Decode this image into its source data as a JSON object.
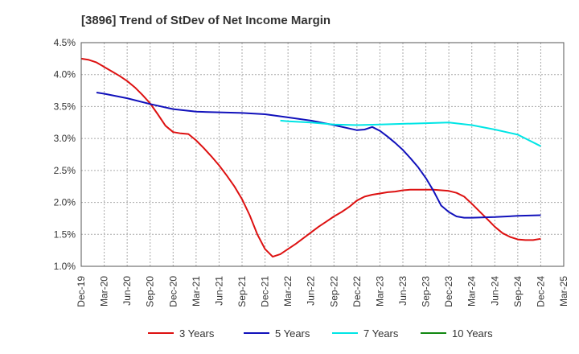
{
  "chart_data": {
    "type": "line",
    "title": "[3896]  Trend of StDev of Net Income Margin",
    "xlabel": "",
    "ylabel": "",
    "ylim": [
      1.0,
      4.5
    ],
    "y_ticks": [
      "1.0%",
      "1.5%",
      "2.0%",
      "2.5%",
      "3.0%",
      "3.5%",
      "4.0%",
      "4.5%"
    ],
    "y_tick_values": [
      1.0,
      1.5,
      2.0,
      2.5,
      3.0,
      3.5,
      4.0,
      4.5
    ],
    "x_ticks": [
      "Dec-19",
      "Mar-20",
      "Jun-20",
      "Sep-20",
      "Dec-20",
      "Mar-21",
      "Jun-21",
      "Sep-21",
      "Dec-21",
      "Mar-22",
      "Jun-22",
      "Sep-22",
      "Dec-22",
      "Mar-23",
      "Jun-23",
      "Sep-23",
      "Dec-23",
      "Mar-24",
      "Jun-24",
      "Sep-24",
      "Dec-24",
      "Mar-25"
    ],
    "grid": true,
    "legend_position": "bottom",
    "series": [
      {
        "name": "3 Years",
        "color": "#dd1111",
        "points": [
          [
            "Dec-19",
            4.25
          ],
          [
            "Jan-20",
            4.23
          ],
          [
            "Feb-20",
            4.19
          ],
          [
            "Mar-20",
            4.12
          ],
          [
            "Apr-20",
            4.05
          ],
          [
            "May-20",
            3.98
          ],
          [
            "Jun-20",
            3.9
          ],
          [
            "Jul-20",
            3.8
          ],
          [
            "Aug-20",
            3.68
          ],
          [
            "Sep-20",
            3.55
          ],
          [
            "Oct-20",
            3.38
          ],
          [
            "Nov-20",
            3.2
          ],
          [
            "Dec-20",
            3.1
          ],
          [
            "Jan-21",
            3.08
          ],
          [
            "Feb-21",
            3.07
          ],
          [
            "Mar-21",
            2.97
          ],
          [
            "Apr-21",
            2.85
          ],
          [
            "May-21",
            2.72
          ],
          [
            "Jun-21",
            2.58
          ],
          [
            "Jul-21",
            2.42
          ],
          [
            "Aug-21",
            2.25
          ],
          [
            "Sep-21",
            2.05
          ],
          [
            "Oct-21",
            1.8
          ],
          [
            "Nov-21",
            1.5
          ],
          [
            "Dec-21",
            1.27
          ],
          [
            "Jan-22",
            1.15
          ],
          [
            "Feb-22",
            1.19
          ],
          [
            "Mar-22",
            1.27
          ],
          [
            "Apr-22",
            1.35
          ],
          [
            "May-22",
            1.44
          ],
          [
            "Jun-22",
            1.53
          ],
          [
            "Jul-22",
            1.62
          ],
          [
            "Aug-22",
            1.7
          ],
          [
            "Sep-22",
            1.78
          ],
          [
            "Oct-22",
            1.85
          ],
          [
            "Nov-22",
            1.93
          ],
          [
            "Dec-22",
            2.03
          ],
          [
            "Jan-23",
            2.09
          ],
          [
            "Feb-23",
            2.12
          ],
          [
            "Mar-23",
            2.14
          ],
          [
            "Apr-23",
            2.16
          ],
          [
            "May-23",
            2.17
          ],
          [
            "Jun-23",
            2.19
          ],
          [
            "Jul-23",
            2.2
          ],
          [
            "Aug-23",
            2.2
          ],
          [
            "Sep-23",
            2.2
          ],
          [
            "Oct-23",
            2.2
          ],
          [
            "Nov-23",
            2.19
          ],
          [
            "Dec-23",
            2.18
          ],
          [
            "Jan-24",
            2.15
          ],
          [
            "Feb-24",
            2.09
          ],
          [
            "Mar-24",
            1.98
          ],
          [
            "Apr-24",
            1.86
          ],
          [
            "May-24",
            1.74
          ],
          [
            "Jun-24",
            1.62
          ],
          [
            "Jul-24",
            1.52
          ],
          [
            "Aug-24",
            1.46
          ],
          [
            "Sep-24",
            1.42
          ],
          [
            "Oct-24",
            1.41
          ],
          [
            "Nov-24",
            1.41
          ],
          [
            "Dec-24",
            1.43
          ]
        ]
      },
      {
        "name": "5 Years",
        "color": "#1111bb",
        "points": [
          [
            "Feb-20",
            3.72
          ],
          [
            "Mar-20",
            3.7
          ],
          [
            "Jun-20",
            3.63
          ],
          [
            "Sep-20",
            3.54
          ],
          [
            "Dec-20",
            3.46
          ],
          [
            "Mar-21",
            3.42
          ],
          [
            "Jun-21",
            3.41
          ],
          [
            "Sep-21",
            3.4
          ],
          [
            "Dec-21",
            3.38
          ],
          [
            "Mar-22",
            3.33
          ],
          [
            "Jun-22",
            3.28
          ],
          [
            "Sep-22",
            3.21
          ],
          [
            "Dec-22",
            3.13
          ],
          [
            "Jan-23",
            3.14
          ],
          [
            "Feb-23",
            3.18
          ],
          [
            "Mar-23",
            3.12
          ],
          [
            "Apr-23",
            3.03
          ],
          [
            "May-23",
            2.93
          ],
          [
            "Jun-23",
            2.82
          ],
          [
            "Jul-23",
            2.69
          ],
          [
            "Aug-23",
            2.55
          ],
          [
            "Sep-23",
            2.38
          ],
          [
            "Oct-23",
            2.18
          ],
          [
            "Nov-23",
            1.95
          ],
          [
            "Dec-23",
            1.85
          ],
          [
            "Jan-24",
            1.78
          ],
          [
            "Feb-24",
            1.76
          ],
          [
            "Mar-24",
            1.76
          ],
          [
            "Jun-24",
            1.77
          ],
          [
            "Sep-24",
            1.79
          ],
          [
            "Dec-24",
            1.8
          ]
        ]
      },
      {
        "name": "7 Years",
        "color": "#00e5e5",
        "points": [
          [
            "Feb-22",
            3.28
          ],
          [
            "Mar-22",
            3.27
          ],
          [
            "Jun-22",
            3.25
          ],
          [
            "Sep-22",
            3.22
          ],
          [
            "Dec-22",
            3.21
          ],
          [
            "Mar-23",
            3.22
          ],
          [
            "Jun-23",
            3.23
          ],
          [
            "Sep-23",
            3.24
          ],
          [
            "Dec-23",
            3.25
          ],
          [
            "Mar-24",
            3.21
          ],
          [
            "Jun-24",
            3.14
          ],
          [
            "Sep-24",
            3.06
          ],
          [
            "Dec-24",
            2.88
          ]
        ]
      },
      {
        "name": "10 Years",
        "color": "#118811",
        "points": []
      }
    ]
  }
}
